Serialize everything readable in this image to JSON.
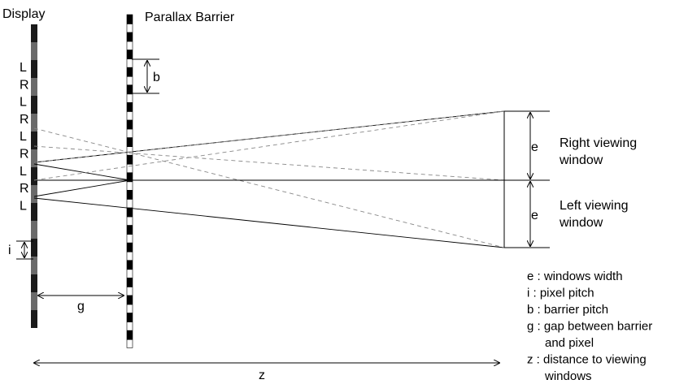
{
  "labels": {
    "display": "Display",
    "barrier": "Parallax Barrier",
    "pixels": [
      "L",
      "R",
      "L",
      "R",
      "L",
      "R",
      "L",
      "R",
      "L"
    ],
    "b": "b",
    "i": "i",
    "g": "g",
    "z": "z",
    "e_top": "e",
    "e_bottom": "e",
    "right_window_line1": "Right viewing",
    "right_window_line2": "window",
    "left_window_line1": "Left viewing",
    "left_window_line2": "window"
  },
  "legend": [
    {
      "line1": "e : windows width"
    },
    {
      "line1": "i : pixel pitch"
    },
    {
      "line1": "b : barrier pitch"
    },
    {
      "line1": "g : gap between barrier",
      "line2": "and pixel"
    },
    {
      "line1": "z : distance to viewing",
      "line2": "windows"
    }
  ]
}
